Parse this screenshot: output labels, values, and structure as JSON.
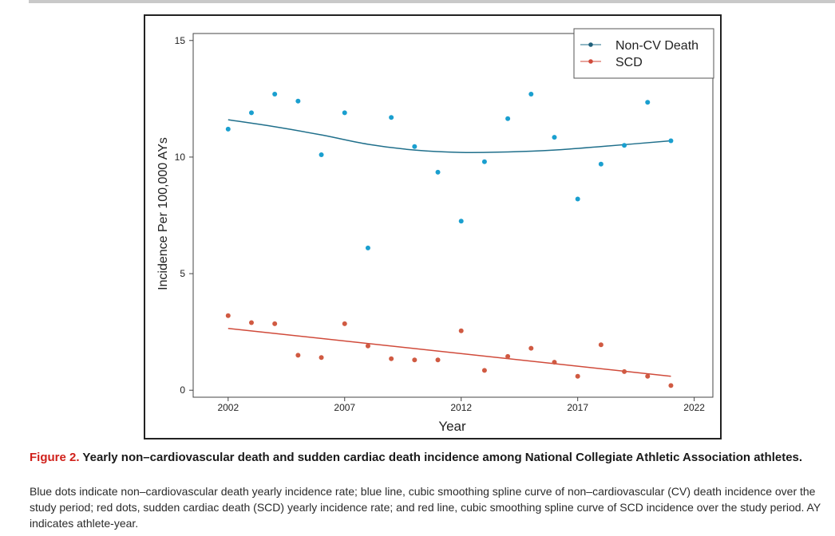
{
  "chart_data": {
    "type": "scatter",
    "xlabel": "Year",
    "ylabel": "Incidence Per 100,000 AYs",
    "xlim": [
      2000.5,
      2022.8
    ],
    "ylim": [
      -0.3,
      15.3
    ],
    "xticks": [
      2002,
      2007,
      2012,
      2017,
      2022
    ],
    "yticks": [
      0,
      5,
      10,
      15
    ],
    "legend_position": "top-right",
    "grid": false,
    "series": [
      {
        "name": "Non-CV Death",
        "color": "#1a9fcf",
        "line_color": "#1f6f8b",
        "points": [
          [
            2002,
            11.2
          ],
          [
            2003,
            11.9
          ],
          [
            2004,
            12.7
          ],
          [
            2005,
            12.4
          ],
          [
            2006,
            10.1
          ],
          [
            2007,
            11.9
          ],
          [
            2008,
            6.1
          ],
          [
            2009,
            11.7
          ],
          [
            2010,
            10.45
          ],
          [
            2011,
            9.35
          ],
          [
            2012,
            7.25
          ],
          [
            2013,
            9.8
          ],
          [
            2014,
            11.65
          ],
          [
            2015,
            12.7
          ],
          [
            2016,
            10.85
          ],
          [
            2017,
            8.2
          ],
          [
            2018,
            9.7
          ],
          [
            2019,
            10.5
          ],
          [
            2020,
            12.35
          ],
          [
            2021,
            10.7
          ]
        ],
        "smooth_curve": [
          [
            2002,
            11.6
          ],
          [
            2004,
            11.3
          ],
          [
            2006,
            10.95
          ],
          [
            2008,
            10.55
          ],
          [
            2010,
            10.3
          ],
          [
            2012,
            10.2
          ],
          [
            2014,
            10.22
          ],
          [
            2016,
            10.3
          ],
          [
            2018,
            10.45
          ],
          [
            2021,
            10.7
          ]
        ]
      },
      {
        "name": "SCD",
        "color": "#d05a42",
        "line_color": "#d04a3a",
        "points": [
          [
            2002,
            3.2
          ],
          [
            2003,
            2.9
          ],
          [
            2004,
            2.85
          ],
          [
            2005,
            1.5
          ],
          [
            2006,
            1.4
          ],
          [
            2007,
            2.85
          ],
          [
            2008,
            1.9
          ],
          [
            2009,
            1.35
          ],
          [
            2010,
            1.3
          ],
          [
            2011,
            1.3
          ],
          [
            2012,
            2.55
          ],
          [
            2013,
            0.85
          ],
          [
            2014,
            1.45
          ],
          [
            2015,
            1.8
          ],
          [
            2016,
            1.2
          ],
          [
            2017,
            0.6
          ],
          [
            2018,
            1.95
          ],
          [
            2019,
            0.8
          ],
          [
            2020,
            0.6
          ],
          [
            2021,
            0.2
          ]
        ],
        "smooth_curve": [
          [
            2002,
            2.65
          ],
          [
            2021,
            0.6
          ]
        ]
      }
    ]
  },
  "caption": {
    "figure_label": "Figure 2.",
    "title": "Yearly non–cardiovascular death and sudden cardiac death incidence among National Collegiate Athletic Association athletes.",
    "body": "Blue dots indicate non–cardiovascular death yearly incidence rate; blue line, cubic smoothing spline curve of non–cardiovascular (CV) death incidence over the study period; red dots, sudden cardiac death (SCD) yearly incidence rate; and red line, cubic smoothing spline curve of SCD incidence over the study period. AY indicates athlete-year."
  }
}
